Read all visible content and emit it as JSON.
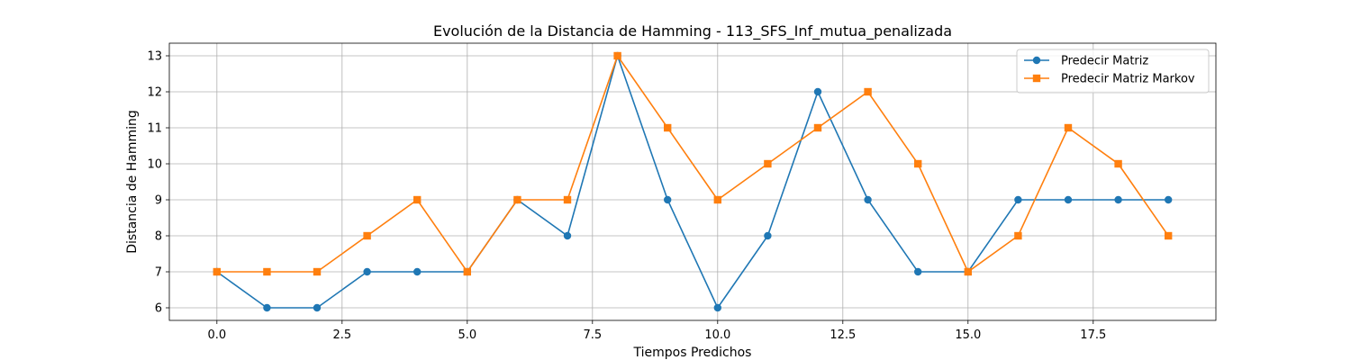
{
  "chart_data": {
    "type": "line",
    "title": "Evolución de la Distancia de Hamming - 113_SFS_Inf_mutua_penalizada",
    "xlabel": "Tiempos Predichos",
    "ylabel": "Distancia de Hamming",
    "xlim": [
      -0.95,
      19.95
    ],
    "ylim": [
      5.65,
      13.35
    ],
    "xticks": [
      0.0,
      2.5,
      5.0,
      7.5,
      10.0,
      12.5,
      15.0,
      17.5
    ],
    "xtick_labels": [
      "0.0",
      "2.5",
      "5.0",
      "7.5",
      "10.0",
      "12.5",
      "15.0",
      "17.5"
    ],
    "yticks": [
      6,
      7,
      8,
      9,
      10,
      11,
      12,
      13
    ],
    "ytick_labels": [
      "6",
      "7",
      "8",
      "9",
      "10",
      "11",
      "12",
      "13"
    ],
    "grid": true,
    "legend_position": "top-right",
    "x": [
      0,
      1,
      2,
      3,
      4,
      5,
      6,
      7,
      8,
      9,
      10,
      11,
      12,
      13,
      14,
      15,
      16,
      17,
      18,
      19
    ],
    "series": [
      {
        "name": "Predecir Matriz",
        "marker": "circle",
        "color": "#1f77b4",
        "values": [
          7,
          6,
          6,
          7,
          7,
          7,
          9,
          8,
          13,
          9,
          6,
          8,
          12,
          9,
          7,
          7,
          9,
          9,
          9,
          9
        ]
      },
      {
        "name": "Predecir Matriz Markov",
        "marker": "square",
        "color": "#ff7f0e",
        "values": [
          7,
          7,
          7,
          8,
          9,
          7,
          9,
          9,
          13,
          11,
          9,
          10,
          11,
          12,
          10,
          7,
          8,
          11,
          10,
          8
        ]
      }
    ]
  }
}
